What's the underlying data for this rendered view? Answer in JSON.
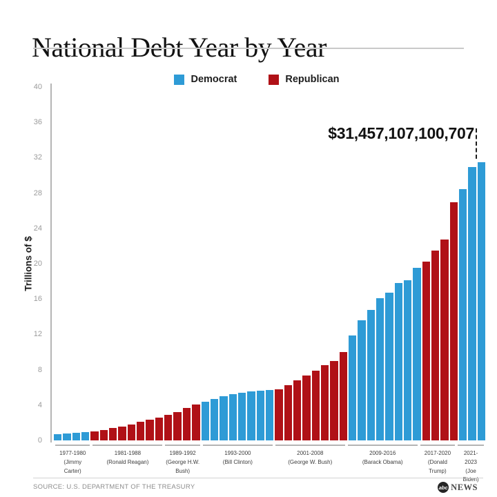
{
  "header": {
    "title": "National Debt Year by Year"
  },
  "legend": [
    {
      "label": "Democrat",
      "color": "#2e9bd6"
    },
    {
      "label": "Republican",
      "color": "#b01117"
    }
  ],
  "chart_data": {
    "type": "bar",
    "title": "National Debt Year by Year",
    "xlabel": "",
    "ylabel": "Trillions of $",
    "ylim": [
      0,
      40
    ],
    "y_ticks": [
      0,
      4,
      8,
      12,
      16,
      20,
      24,
      28,
      32,
      36,
      40
    ],
    "grid": false,
    "legend_position": "top",
    "series_colors": {
      "Democrat": "#2e9bd6",
      "Republican": "#b01117"
    },
    "annotation": {
      "text": "$31,457,107,100,707",
      "value": 31.457107100707,
      "year": 2023
    },
    "groups": [
      {
        "years": "1977-1980",
        "president": "(Jimmy Carter)",
        "party": "Democrat",
        "values": [
          0.7,
          0.77,
          0.83,
          0.91
        ]
      },
      {
        "years": "1981-1988",
        "president": "(Ronald Reagan)",
        "party": "Republican",
        "values": [
          1.0,
          1.14,
          1.38,
          1.57,
          1.82,
          2.13,
          2.35,
          2.6
        ]
      },
      {
        "years": "1989-1992",
        "president": "(George H.W. Bush)",
        "party": "Republican",
        "values": [
          2.86,
          3.23,
          3.67,
          4.06
        ]
      },
      {
        "years": "1993-2000",
        "president": "(Bill Clinton)",
        "party": "Democrat",
        "values": [
          4.41,
          4.69,
          4.97,
          5.22,
          5.41,
          5.53,
          5.66,
          5.67
        ]
      },
      {
        "years": "2001-2008",
        "president": "(George W. Bush)",
        "party": "Republican",
        "values": [
          5.81,
          6.23,
          6.78,
          7.38,
          7.93,
          8.51,
          9.01,
          10.02
        ]
      },
      {
        "years": "2009-2016",
        "president": "(Barack Obama)",
        "party": "Democrat",
        "values": [
          11.91,
          13.56,
          14.79,
          16.07,
          16.74,
          17.82,
          18.15,
          19.57
        ]
      },
      {
        "years": "2017-2020",
        "president": "(Donald Trump)",
        "party": "Republican",
        "values": [
          20.24,
          21.52,
          22.72,
          26.95
        ]
      },
      {
        "years": "2021-2023",
        "president": "(Joe Biden)",
        "party": "Democrat",
        "values": [
          28.43,
          30.93,
          31.46
        ]
      }
    ]
  },
  "footer": {
    "source": "SOURCE: U.S. DEPARTMENT OF THE TREASURY",
    "logo_abc": "abc",
    "logo_news": "NEWS"
  }
}
